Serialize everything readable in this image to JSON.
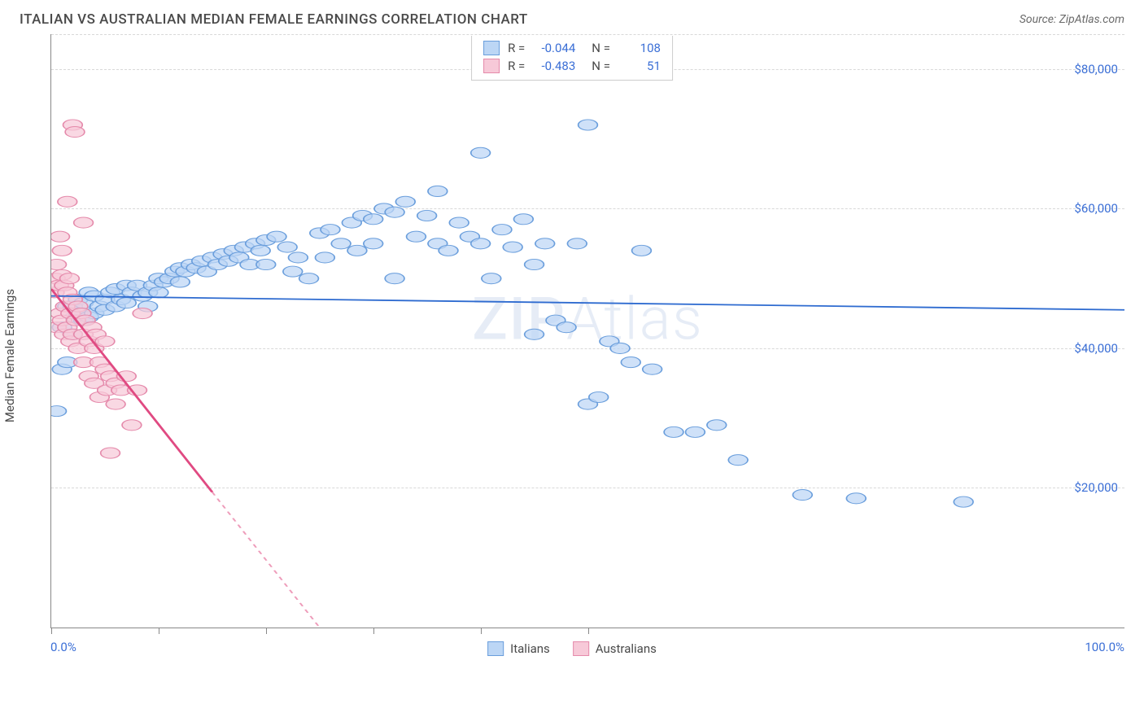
{
  "title": "ITALIAN VS AUSTRALIAN MEDIAN FEMALE EARNINGS CORRELATION CHART",
  "source": "Source: ZipAtlas.com",
  "ylabel": "Median Female Earnings",
  "watermark": "ZIPAtlas",
  "chart": {
    "type": "scatter",
    "xlim": [
      0,
      100
    ],
    "ylim": [
      0,
      85000
    ],
    "x_tick_positions": [
      0,
      10,
      20,
      30,
      40,
      50
    ],
    "x_axis_min_label": "0.0%",
    "x_axis_max_label": "100.0%",
    "y_gridlines": [
      20000,
      40000,
      60000,
      80000
    ],
    "y_tick_labels": [
      "$20,000",
      "$40,000",
      "$60,000",
      "$80,000"
    ],
    "y_tick_color": "#3b6fd6",
    "grid_color": "#d8d8d8",
    "axis_color": "#888888",
    "background_color": "#ffffff",
    "marker_radius": 9,
    "marker_stroke_width": 1.3,
    "trendline_width": 2.5,
    "series": [
      {
        "name": "Italians",
        "fill_color": "#bcd6f5",
        "stroke_color": "#6a9edc",
        "trend_color": "#2e6bd0",
        "R": "-0.044",
        "N": "108",
        "trendline": {
          "x1": 0,
          "y1": 47500,
          "x2": 100,
          "y2": 45500
        },
        "points": [
          [
            0.5,
            31000
          ],
          [
            1,
            37000
          ],
          [
            1,
            43000
          ],
          [
            1.5,
            46000
          ],
          [
            1.5,
            38000
          ],
          [
            2,
            46000
          ],
          [
            2,
            42000
          ],
          [
            2.2,
            44500
          ],
          [
            2.5,
            45000
          ],
          [
            2.5,
            47000
          ],
          [
            3,
            46500
          ],
          [
            3,
            44000
          ],
          [
            3.5,
            44500
          ],
          [
            3.5,
            48000
          ],
          [
            4,
            47500
          ],
          [
            4,
            45000
          ],
          [
            4.5,
            46000
          ],
          [
            5,
            47000
          ],
          [
            5,
            45500
          ],
          [
            5.5,
            48000
          ],
          [
            6,
            46000
          ],
          [
            6,
            48500
          ],
          [
            6.5,
            47000
          ],
          [
            7,
            46500
          ],
          [
            7,
            49000
          ],
          [
            7.5,
            48000
          ],
          [
            8,
            49000
          ],
          [
            8.5,
            47500
          ],
          [
            9,
            48000
          ],
          [
            9,
            46000
          ],
          [
            9.5,
            49000
          ],
          [
            10,
            50000
          ],
          [
            10,
            48000
          ],
          [
            10.5,
            49500
          ],
          [
            11,
            50000
          ],
          [
            11.5,
            51000
          ],
          [
            12,
            49500
          ],
          [
            12,
            51500
          ],
          [
            12.5,
            51000
          ],
          [
            13,
            52000
          ],
          [
            13.5,
            51500
          ],
          [
            14,
            52500
          ],
          [
            14.5,
            51000
          ],
          [
            15,
            53000
          ],
          [
            15.5,
            52000
          ],
          [
            16,
            53500
          ],
          [
            16.5,
            52500
          ],
          [
            17,
            54000
          ],
          [
            17.5,
            53000
          ],
          [
            18,
            54500
          ],
          [
            18.5,
            52000
          ],
          [
            19,
            55000
          ],
          [
            19.5,
            54000
          ],
          [
            20,
            55500
          ],
          [
            20,
            52000
          ],
          [
            21,
            56000
          ],
          [
            22,
            54500
          ],
          [
            22.5,
            51000
          ],
          [
            23,
            53000
          ],
          [
            24,
            50000
          ],
          [
            25,
            56500
          ],
          [
            25.5,
            53000
          ],
          [
            26,
            57000
          ],
          [
            27,
            55000
          ],
          [
            28,
            58000
          ],
          [
            28.5,
            54000
          ],
          [
            29,
            59000
          ],
          [
            30,
            58500
          ],
          [
            30,
            55000
          ],
          [
            31,
            60000
          ],
          [
            32,
            59500
          ],
          [
            32,
            50000
          ],
          [
            33,
            61000
          ],
          [
            34,
            56000
          ],
          [
            35,
            59000
          ],
          [
            36,
            55000
          ],
          [
            36,
            62500
          ],
          [
            37,
            54000
          ],
          [
            38,
            58000
          ],
          [
            39,
            56000
          ],
          [
            40,
            55000
          ],
          [
            40,
            68000
          ],
          [
            41,
            50000
          ],
          [
            42,
            57000
          ],
          [
            43,
            54500
          ],
          [
            44,
            58500
          ],
          [
            45,
            42000
          ],
          [
            45,
            52000
          ],
          [
            46,
            55000
          ],
          [
            47,
            44000
          ],
          [
            48,
            43000
          ],
          [
            49,
            55000
          ],
          [
            50,
            72000
          ],
          [
            50,
            32000
          ],
          [
            51,
            33000
          ],
          [
            52,
            41000
          ],
          [
            53,
            40000
          ],
          [
            54,
            38000
          ],
          [
            55,
            54000
          ],
          [
            56,
            37000
          ],
          [
            58,
            28000
          ],
          [
            60,
            28000
          ],
          [
            62,
            29000
          ],
          [
            64,
            24000
          ],
          [
            70,
            19000
          ],
          [
            75,
            18500
          ],
          [
            85,
            18000
          ]
        ]
      },
      {
        "name": "Australians",
        "fill_color": "#f7c9d8",
        "stroke_color": "#e58aab",
        "trend_color": "#e04a82",
        "R": "-0.483",
        "N": "51",
        "trendline": {
          "x1": 0,
          "y1": 48500,
          "x2": 25,
          "y2": 0
        },
        "trendline_dash_after_x": 15,
        "points": [
          [
            0.3,
            48000
          ],
          [
            0.4,
            50000
          ],
          [
            0.5,
            52000
          ],
          [
            0.5,
            43000
          ],
          [
            0.7,
            49000
          ],
          [
            0.8,
            56000
          ],
          [
            0.8,
            45000
          ],
          [
            1,
            50500
          ],
          [
            1,
            54000
          ],
          [
            1,
            44000
          ],
          [
            1.2,
            42000
          ],
          [
            1.2,
            49000
          ],
          [
            1.3,
            46000
          ],
          [
            1.5,
            61000
          ],
          [
            1.5,
            43000
          ],
          [
            1.5,
            48000
          ],
          [
            1.7,
            50000
          ],
          [
            1.8,
            45000
          ],
          [
            1.8,
            41000
          ],
          [
            2,
            47000
          ],
          [
            2,
            42000
          ],
          [
            2,
            72000
          ],
          [
            2.2,
            71000
          ],
          [
            2.3,
            44000
          ],
          [
            2.5,
            46000
          ],
          [
            2.5,
            40000
          ],
          [
            2.8,
            45000
          ],
          [
            3,
            42000
          ],
          [
            3,
            38000
          ],
          [
            3,
            58000
          ],
          [
            3.2,
            44000
          ],
          [
            3.5,
            41000
          ],
          [
            3.5,
            36000
          ],
          [
            3.8,
            43000
          ],
          [
            4,
            40000
          ],
          [
            4,
            35000
          ],
          [
            4.2,
            42000
          ],
          [
            4.5,
            38000
          ],
          [
            4.5,
            33000
          ],
          [
            5,
            37000
          ],
          [
            5,
            41000
          ],
          [
            5.2,
            34000
          ],
          [
            5.5,
            36000
          ],
          [
            5.5,
            25000
          ],
          [
            6,
            35000
          ],
          [
            6,
            32000
          ],
          [
            6.5,
            34000
          ],
          [
            7,
            36000
          ],
          [
            7.5,
            29000
          ],
          [
            8,
            34000
          ],
          [
            8.5,
            45000
          ]
        ]
      }
    ]
  },
  "bottom_legend": [
    {
      "label": "Italians",
      "fill": "#bcd6f5",
      "stroke": "#6a9edc"
    },
    {
      "label": "Australians",
      "fill": "#f7c9d8",
      "stroke": "#e58aab"
    }
  ]
}
